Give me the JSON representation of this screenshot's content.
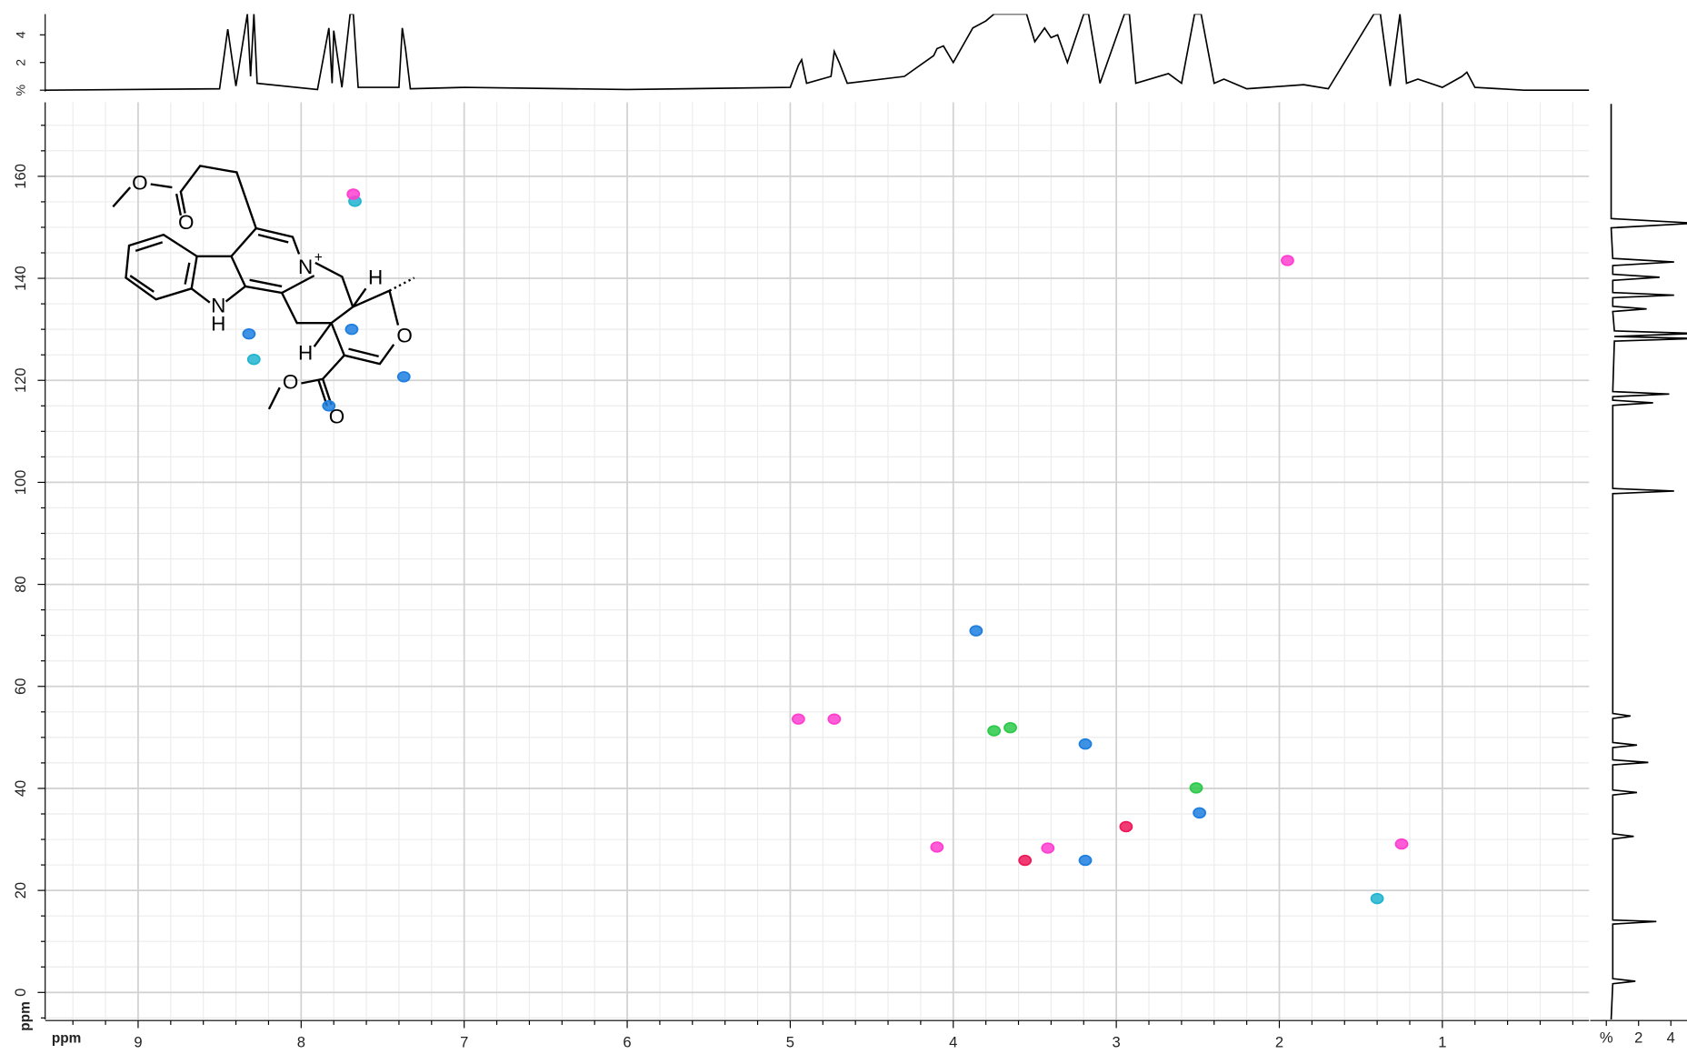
{
  "chart_data": [
    {
      "type": "line",
      "color": "#000000",
      "x": [
        9.57,
        8.5,
        8.45,
        8.4,
        8.33,
        8.31,
        8.29,
        8.27,
        7.9,
        7.83,
        7.81,
        7.8,
        7.75,
        7.7,
        7.68,
        7.65,
        7.4,
        7.38,
        7.36,
        7.33,
        7.0,
        6.0,
        5.0,
        4.95,
        4.93,
        4.9,
        4.75,
        4.73,
        4.7,
        4.65,
        4.3,
        4.12,
        4.1,
        4.06,
        4.0,
        3.88,
        3.8,
        3.75,
        3.65,
        3.55,
        3.5,
        3.44,
        3.4,
        3.36,
        3.3,
        3.2,
        3.17,
        3.1,
        2.95,
        2.92,
        2.88,
        2.68,
        2.6,
        2.52,
        2.48,
        2.4,
        2.34,
        2.2,
        1.85,
        1.7,
        1.42,
        1.38,
        1.32,
        1.26,
        1.22,
        1.15,
        1.0,
        0.88,
        0.85,
        0.8,
        0.5,
        0.1
      ],
      "values": [
        0,
        0.1,
        4.4,
        0.3,
        5.5,
        1,
        5.5,
        0.5,
        0.05,
        4.5,
        0.5,
        4.3,
        0.2,
        5.5,
        5.5,
        0.2,
        0.2,
        4.5,
        3,
        0.1,
        0.2,
        0.05,
        0.2,
        1.8,
        2.2,
        0.5,
        1,
        2.8,
        2,
        0.5,
        1,
        2.5,
        3,
        3.2,
        2,
        4.5,
        5,
        5.5,
        5.5,
        5.5,
        3.5,
        4.5,
        3.8,
        4,
        2,
        5.5,
        5.5,
        0.5,
        5.5,
        5.5,
        0.5,
        1.2,
        0.5,
        5.5,
        5.5,
        0.5,
        0.8,
        0.1,
        0.4,
        0.1,
        5.5,
        5.5,
        0.3,
        5.5,
        0.5,
        0.8,
        0.2,
        1,
        1.3,
        0.2,
        0,
        0
      ],
      "xlim": [
        9.57,
        0.1
      ],
      "ylim": [
        -0.1,
        5.5
      ],
      "yticks": [
        {
          "value": 0,
          "label": "%"
        },
        2,
        4
      ]
    },
    {
      "type": "scatter",
      "xlabel": "ppm",
      "ylabel": "ppm",
      "grid": true,
      "xlim": [
        9.57,
        0.1
      ],
      "ylim": [
        -5.3,
        174.5
      ],
      "xticks": [
        9,
        8,
        7,
        6,
        5,
        4,
        3,
        2,
        1
      ],
      "yticks": [
        0,
        20,
        40,
        60,
        80,
        100,
        120,
        140,
        160
      ],
      "series": [
        {
          "color": "#1e7fe0",
          "x": [
            3.19,
            2.49,
            3.19,
            3.86,
            7.83,
            7.37,
            8.32,
            7.69
          ],
          "values": [
            25.9,
            35.2,
            48.7,
            70.9,
            115.0,
            120.7,
            129.1,
            130.0
          ]
        },
        {
          "color": "#22b5d0",
          "x": [
            1.4,
            8.29,
            7.67
          ],
          "values": [
            18.4,
            124.1,
            155.1
          ]
        },
        {
          "color": "#2cc94a",
          "x": [
            2.51,
            3.75,
            3.65
          ],
          "values": [
            40.1,
            51.3,
            51.9
          ]
        },
        {
          "color": "#ff3fd0",
          "x": [
            1.25,
            4.1,
            3.42,
            4.95,
            4.73,
            7.68,
            1.95
          ],
          "values": [
            29.1,
            28.5,
            28.3,
            53.6,
            53.6,
            156.5,
            143.5
          ]
        },
        {
          "color": "#ee1a5a",
          "x": [
            3.56,
            2.94
          ],
          "values": [
            25.9,
            32.5
          ]
        }
      ]
    },
    {
      "type": "line",
      "orientation": "vertical",
      "color": "#000000",
      "x": [
        -5,
        17.5,
        18.4,
        19.3,
        25.3,
        26,
        26.7,
        28.4,
        29,
        29.6,
        32,
        32.5,
        33,
        34.7,
        35.2,
        35.7,
        39.5,
        40,
        40.6,
        41,
        41.5,
        51.4,
        51.9,
        52.4,
        53.1,
        53.6,
        54.1,
        70.4,
        70.9,
        71.4,
        114.5,
        115,
        115.5,
        120.2,
        120.7,
        121.2,
        123.6,
        124.1,
        124.6,
        129.5,
        130,
        130.5,
        138.1,
        138.6,
        139.1,
        155,
        155.3,
        155.8,
        166.5,
        167,
        167.5,
        174.5
      ],
      "values": [
        0.3,
        0.3,
        5.5,
        0.3,
        0.4,
        4.2,
        0.4,
        0.4,
        3.3,
        0.4,
        0.4,
        4.2,
        0.4,
        0.4,
        2.5,
        0.4,
        0.5,
        5.5,
        0.5,
        5.5,
        0.5,
        0.4,
        3.9,
        0.4,
        0.4,
        2.9,
        0.4,
        0.4,
        4.2,
        0.4,
        0.4,
        1.5,
        0.4,
        0.4,
        1.9,
        0.4,
        0.4,
        2.6,
        0.4,
        0.4,
        1.9,
        0.4,
        0.4,
        1.7,
        0.4,
        0.4,
        3.1,
        0.4,
        0.4,
        1.8,
        0.4,
        0.3
      ],
      "xlim": [
        -5.3,
        174.5
      ],
      "ylim": [
        -1,
        5
      ],
      "yticks": [
        {
          "value": 0,
          "label": "%"
        },
        2,
        4
      ]
    }
  ],
  "structure": {
    "atoms": [
      "O",
      "O",
      "N",
      "+",
      "N",
      "H",
      "H",
      "H",
      "O",
      "O",
      "O"
    ]
  }
}
